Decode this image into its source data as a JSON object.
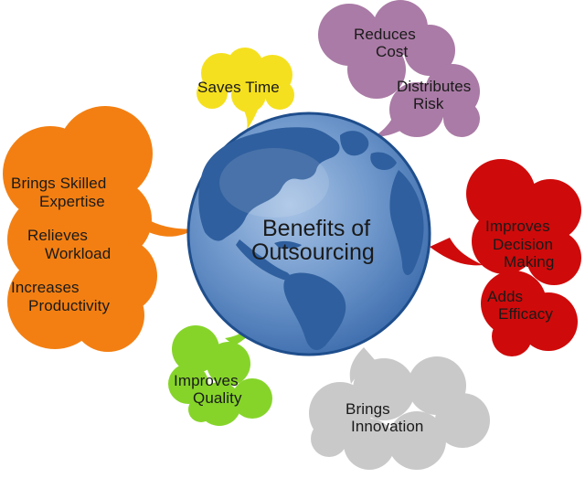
{
  "center": {
    "line1": "Benefits of",
    "line2": "Outsourcing"
  },
  "bubbles": {
    "saves_time": {
      "lines": [
        "Saves Time"
      ],
      "color": "#f5e01f"
    },
    "cost_risk": {
      "lines": [
        "Reduces",
        "Cost",
        "Distributes",
        "Risk"
      ],
      "color": "#aa7ba6"
    },
    "skills": {
      "lines": [
        "Brings Skilled",
        "Expertise",
        "Relieves",
        "Workload",
        "Increases",
        "Productivity"
      ],
      "color": "#f37f12"
    },
    "decision": {
      "lines": [
        "Improves",
        "Decision",
        "Making",
        "Adds",
        "Efficacy"
      ],
      "color": "#cf0a0a"
    },
    "quality": {
      "lines": [
        "Improves",
        "Quality"
      ],
      "color": "#86d42a"
    },
    "innovation": {
      "lines": [
        "Brings",
        "Innovation"
      ],
      "color": "#c9c9c9"
    }
  },
  "globe": {
    "ocean": "#6e97cb",
    "land": "#2f5f9e",
    "rim": "#1f4e8c"
  }
}
